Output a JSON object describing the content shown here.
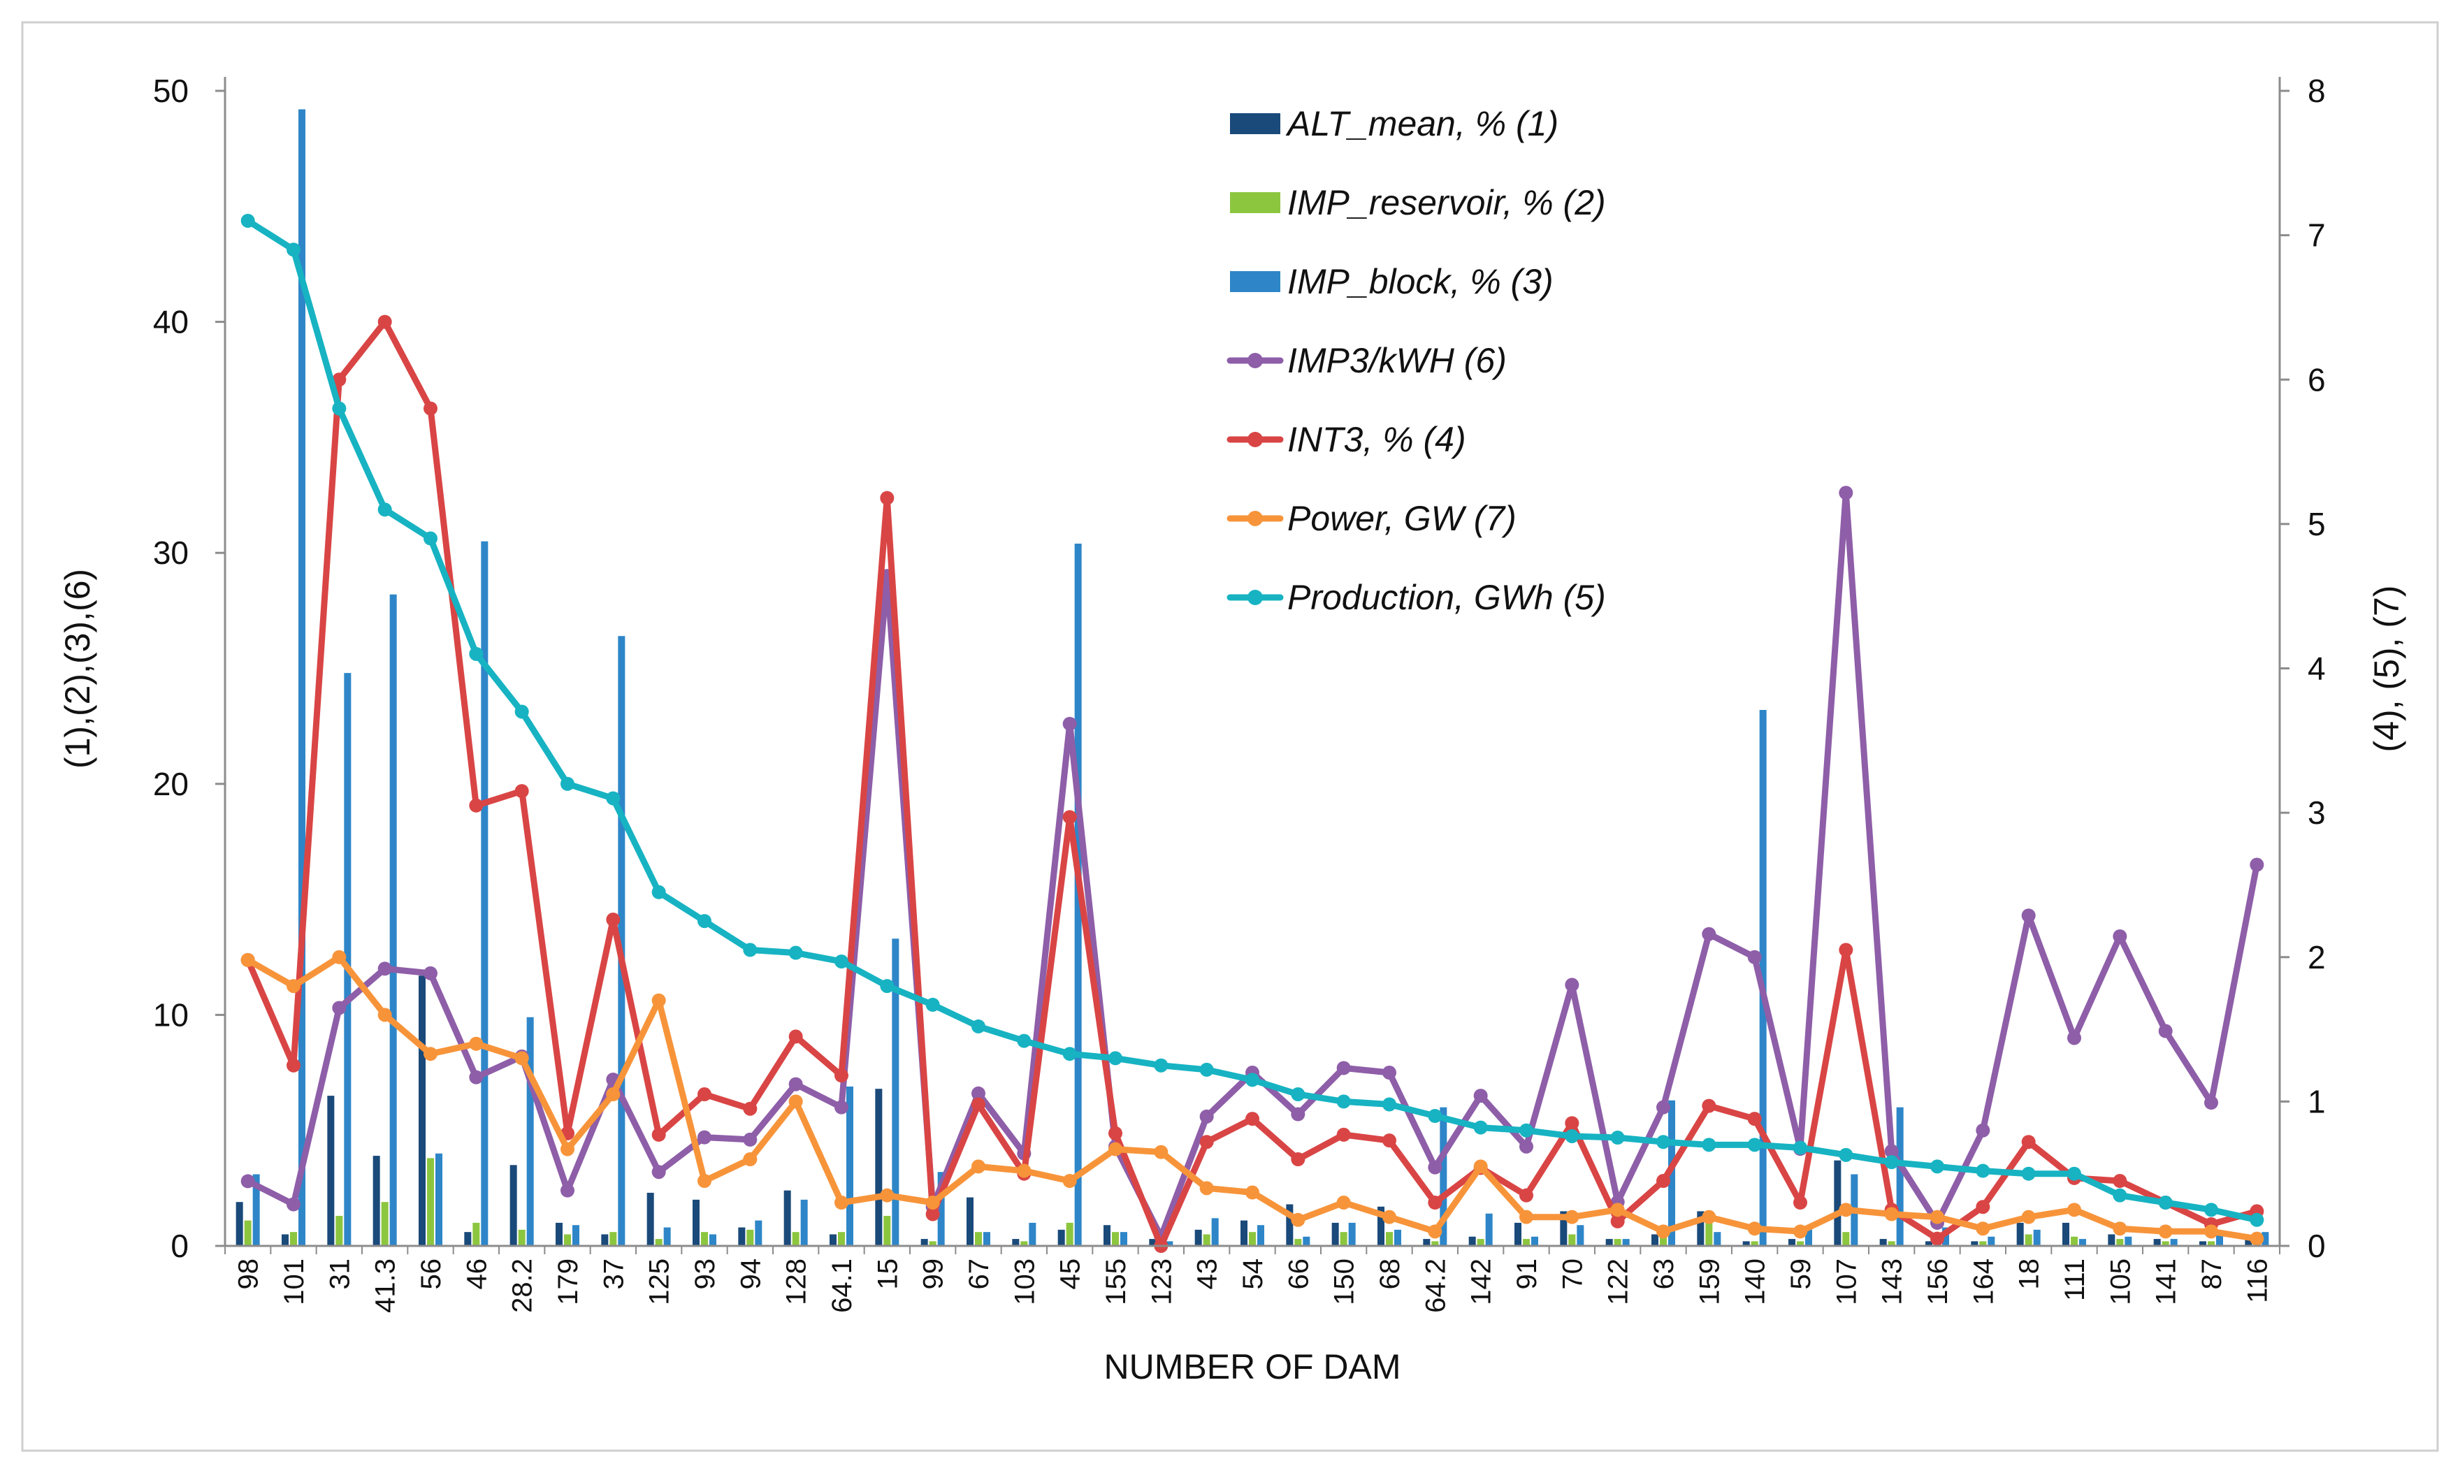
{
  "chart_data": {
    "type": "bar",
    "xlabel": "NUMBER OF DAM",
    "ylabel_left": "(1),(2),(3),(6)",
    "ylabel_right": "(4), (5), (7)",
    "ylim_left": [
      0,
      50
    ],
    "yticks_left": [
      "0",
      "10",
      "20",
      "30",
      "40",
      "50"
    ],
    "ylim_right": [
      0,
      8
    ],
    "yticks_right": [
      "0",
      "1",
      "2",
      "3",
      "4",
      "5",
      "6",
      "7",
      "8"
    ],
    "categories": [
      "98",
      "101",
      "31",
      "41.3",
      "56",
      "46",
      "28.2",
      "179",
      "37",
      "125",
      "93",
      "94",
      "128",
      "64.1",
      "15",
      "99",
      "67",
      "103",
      "45",
      "155",
      "123",
      "43",
      "54",
      "66",
      "150",
      "68",
      "64.2",
      "142",
      "91",
      "70",
      "122",
      "63",
      "159",
      "140",
      "59",
      "107",
      "143",
      "156",
      "164",
      "18",
      "111",
      "105",
      "141",
      "87",
      "116"
    ],
    "series": [
      {
        "name": "ALT_mean, % (1)",
        "type": "bar",
        "axis": "left",
        "color": "#1a4a7a",
        "values": [
          1.9,
          0.5,
          6.5,
          3.9,
          11.7,
          0.6,
          3.5,
          1.0,
          0.5,
          2.3,
          2.0,
          0.8,
          2.4,
          0.5,
          6.8,
          0.3,
          2.1,
          0.3,
          0.7,
          0.9,
          0.3,
          0.7,
          1.1,
          1.8,
          1.0,
          1.7,
          0.3,
          0.4,
          1.0,
          1.5,
          0.3,
          0.5,
          1.5,
          0.2,
          0.3,
          3.7,
          0.3,
          0.2,
          0.2,
          1.0,
          1.0,
          0.5,
          0.3,
          0.2,
          0.3
        ]
      },
      {
        "name": "IMP_reservoir, % (2)",
        "type": "bar",
        "axis": "left",
        "color": "#8cc63f",
        "values": [
          1.1,
          0.6,
          1.3,
          1.9,
          3.8,
          1.0,
          0.7,
          0.5,
          0.6,
          0.3,
          0.6,
          0.7,
          0.6,
          0.6,
          1.3,
          0.2,
          0.6,
          0.2,
          1.0,
          0.6,
          0.2,
          0.5,
          0.6,
          0.3,
          0.6,
          0.6,
          0.2,
          0.3,
          0.3,
          0.5,
          0.3,
          0.4,
          1.1,
          0.2,
          0.2,
          0.6,
          0.2,
          0.2,
          0.2,
          0.5,
          0.4,
          0.3,
          0.2,
          0.2,
          0.2
        ]
      },
      {
        "name": "IMP_block, % (3)",
        "type": "bar",
        "axis": "left",
        "color": "#2e86c8",
        "values": [
          3.1,
          49.2,
          24.8,
          28.2,
          4.0,
          30.5,
          9.9,
          0.9,
          26.4,
          0.8,
          0.5,
          1.1,
          2.0,
          6.9,
          13.3,
          3.2,
          0.6,
          1.0,
          30.4,
          0.6,
          0.2,
          1.2,
          0.9,
          0.4,
          1.0,
          0.7,
          6.0,
          1.4,
          0.4,
          0.9,
          0.3,
          6.3,
          0.6,
          23.2,
          0.8,
          3.1,
          6.0,
          0.8,
          0.4,
          0.7,
          0.3,
          0.4,
          0.3,
          0.5,
          0.6
        ]
      },
      {
        "name": "IMP3/kWH (6)",
        "type": "line",
        "axis": "left",
        "color": "#8e5ea8",
        "values": [
          2.8,
          1.8,
          10.3,
          12.0,
          11.8,
          7.3,
          8.2,
          2.4,
          7.2,
          3.2,
          4.7,
          4.6,
          7.0,
          6.0,
          29.0,
          1.7,
          6.6,
          4.0,
          22.6,
          4.3,
          0.4,
          5.6,
          7.5,
          5.7,
          7.7,
          7.5,
          3.4,
          6.5,
          4.3,
          11.3,
          1.9,
          6.0,
          13.5,
          12.5,
          4.2,
          32.6,
          4.1,
          1.0,
          5.0,
          14.3,
          9.0,
          13.4,
          9.3,
          6.2,
          16.5
        ]
      },
      {
        "name": "INT3, % (4)",
        "type": "line",
        "axis": "right",
        "color": "#d94545",
        "values": [
          1.98,
          1.25,
          6.0,
          6.4,
          5.8,
          3.05,
          3.15,
          0.78,
          2.26,
          0.77,
          1.05,
          0.95,
          1.45,
          1.18,
          5.18,
          0.22,
          0.98,
          0.5,
          2.97,
          0.78,
          0.0,
          0.72,
          0.88,
          0.6,
          0.77,
          0.73,
          0.3,
          0.54,
          0.35,
          0.85,
          0.17,
          0.45,
          0.97,
          0.88,
          0.3,
          2.05,
          0.25,
          0.05,
          0.27,
          0.72,
          0.47,
          0.45,
          0.3,
          0.15,
          0.24
        ]
      },
      {
        "name": "Power, GW (7)",
        "type": "line",
        "axis": "right",
        "color": "#f7943a",
        "values": [
          1.98,
          1.8,
          2.0,
          1.6,
          1.33,
          1.4,
          1.3,
          0.67,
          1.05,
          1.7,
          0.45,
          0.6,
          1.0,
          0.3,
          0.35,
          0.3,
          0.55,
          0.52,
          0.45,
          0.67,
          0.65,
          0.4,
          0.37,
          0.18,
          0.3,
          0.2,
          0.1,
          0.55,
          0.2,
          0.2,
          0.25,
          0.1,
          0.2,
          0.12,
          0.1,
          0.25,
          0.22,
          0.2,
          0.12,
          0.2,
          0.25,
          0.12,
          0.1,
          0.1,
          0.05
        ]
      },
      {
        "name": "Production, GWh (5)",
        "type": "line",
        "axis": "right",
        "color": "#17b3c2",
        "values": [
          7.1,
          6.9,
          5.8,
          5.1,
          4.9,
          4.1,
          3.7,
          3.2,
          3.1,
          2.45,
          2.25,
          2.05,
          2.03,
          1.97,
          1.8,
          1.67,
          1.52,
          1.42,
          1.33,
          1.3,
          1.25,
          1.22,
          1.15,
          1.05,
          1.0,
          0.98,
          0.9,
          0.82,
          0.8,
          0.76,
          0.75,
          0.72,
          0.7,
          0.7,
          0.68,
          0.63,
          0.58,
          0.55,
          0.52,
          0.5,
          0.5,
          0.35,
          0.3,
          0.25,
          0.18
        ]
      }
    ]
  }
}
